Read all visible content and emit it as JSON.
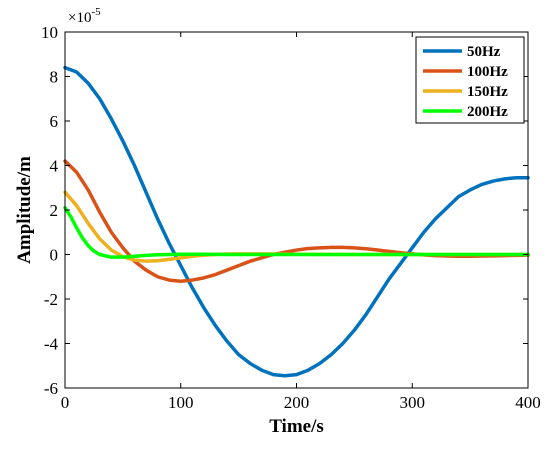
{
  "chart_data": {
    "type": "line",
    "xlabel": "Time/s",
    "ylabel": "Amplitude/m",
    "xlim": [
      0,
      400
    ],
    "ylim": [
      -6,
      10
    ],
    "xticks": [
      0,
      100,
      200,
      300,
      400
    ],
    "yticks": [
      -6,
      -4,
      -2,
      0,
      2,
      4,
      6,
      8,
      10
    ],
    "y_multiplier_label": "×10",
    "y_multiplier_exponent": "-5",
    "grid": false,
    "legend_position": "top-right",
    "series": [
      {
        "name": "50Hz",
        "color": "#0072BD",
        "x": [
          0,
          10,
          20,
          30,
          40,
          50,
          60,
          70,
          80,
          90,
          100,
          110,
          120,
          130,
          140,
          150,
          160,
          170,
          180,
          190,
          200,
          210,
          220,
          230,
          240,
          250,
          260,
          270,
          280,
          290,
          300,
          310,
          320,
          330,
          340,
          350,
          360,
          370,
          380,
          390,
          400
        ],
        "y": [
          8.4,
          8.2,
          7.7,
          7.0,
          6.1,
          5.1,
          4.0,
          2.8,
          1.6,
          0.5,
          -0.5,
          -1.5,
          -2.4,
          -3.2,
          -3.9,
          -4.5,
          -4.9,
          -5.2,
          -5.4,
          -5.45,
          -5.4,
          -5.2,
          -4.9,
          -4.5,
          -4.0,
          -3.4,
          -2.7,
          -1.9,
          -1.1,
          -0.4,
          0.3,
          1.0,
          1.6,
          2.1,
          2.6,
          2.9,
          3.15,
          3.3,
          3.4,
          3.45,
          3.45
        ]
      },
      {
        "name": "100Hz",
        "color": "#D95319",
        "x": [
          0,
          10,
          20,
          30,
          40,
          50,
          60,
          70,
          80,
          90,
          100,
          110,
          120,
          130,
          140,
          150,
          160,
          170,
          180,
          190,
          200,
          210,
          220,
          230,
          240,
          250,
          260,
          270,
          280,
          290,
          300,
          310,
          320,
          330,
          340,
          350,
          360,
          370,
          380,
          390,
          400
        ],
        "y": [
          4.2,
          3.7,
          2.9,
          1.9,
          1.0,
          0.3,
          -0.3,
          -0.7,
          -1.0,
          -1.15,
          -1.2,
          -1.15,
          -1.05,
          -0.9,
          -0.7,
          -0.5,
          -0.3,
          -0.15,
          0.0,
          0.1,
          0.2,
          0.27,
          0.3,
          0.32,
          0.32,
          0.3,
          0.26,
          0.2,
          0.14,
          0.08,
          0.03,
          -0.02,
          -0.05,
          -0.07,
          -0.08,
          -0.08,
          -0.07,
          -0.06,
          -0.05,
          -0.04,
          -0.03
        ]
      },
      {
        "name": "150Hz",
        "color": "#EDB120",
        "x": [
          0,
          10,
          20,
          30,
          40,
          50,
          60,
          70,
          80,
          90,
          100,
          110,
          120,
          130,
          140,
          150,
          160,
          180,
          200,
          250,
          300,
          350,
          400
        ],
        "y": [
          2.8,
          2.2,
          1.4,
          0.7,
          0.2,
          -0.1,
          -0.25,
          -0.3,
          -0.28,
          -0.22,
          -0.15,
          -0.08,
          -0.03,
          0.0,
          0.02,
          0.03,
          0.03,
          0.02,
          0.01,
          0.0,
          0.0,
          0.0,
          0.0
        ]
      },
      {
        "name": "200Hz",
        "color": "#00FF00",
        "x": [
          0,
          5,
          10,
          15,
          20,
          25,
          30,
          40,
          50,
          60,
          70,
          80,
          90,
          100,
          120,
          140,
          160,
          200,
          250,
          300,
          350,
          400
        ],
        "y": [
          2.1,
          1.7,
          1.2,
          0.75,
          0.4,
          0.15,
          0.0,
          -0.12,
          -0.12,
          -0.08,
          -0.04,
          -0.01,
          0.0,
          0.01,
          0.01,
          0.0,
          0.0,
          0.0,
          0.0,
          0.0,
          0.0,
          0.0
        ]
      }
    ]
  }
}
